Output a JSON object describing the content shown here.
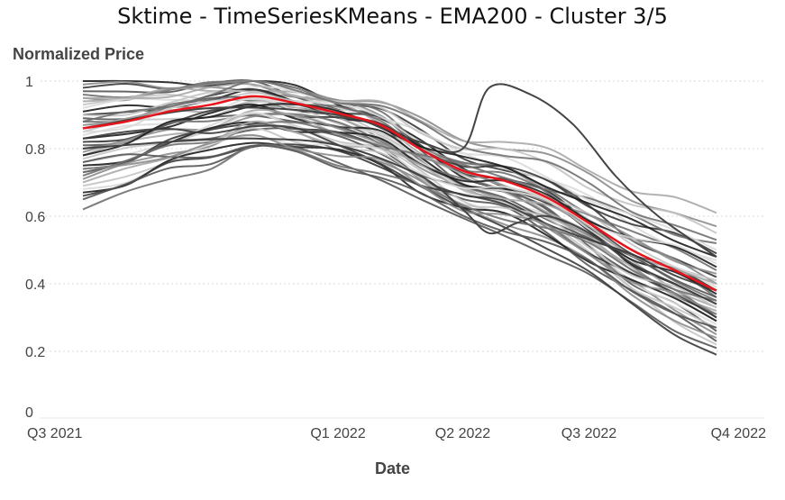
{
  "chart_data": {
    "type": "line",
    "title": "Sktime - TimeSeriesKMeans - EMA200 - Cluster 3/5",
    "xlabel": "Date",
    "ylabel": "Normalized Price",
    "x_range": [
      "2021-07-01",
      "2022-10-01"
    ],
    "ylim": [
      0,
      1
    ],
    "x_ticks": [
      {
        "date": "2021-07-01",
        "label": "Q3 2021"
      },
      {
        "date": "2022-01-01",
        "label": "Q1 2022"
      },
      {
        "date": "2022-04-01",
        "label": "Q2 2022"
      },
      {
        "date": "2022-07-01",
        "label": "Q3 2022"
      },
      {
        "date": "2022-10-01",
        "label": "Q4 2022"
      }
    ],
    "y_ticks": [
      {
        "value": 0,
        "label": "0"
      },
      {
        "value": 0.2,
        "label": "0.2"
      },
      {
        "value": 0.4,
        "label": "0.4"
      },
      {
        "value": 0.6,
        "label": "0.6"
      },
      {
        "value": 0.8,
        "label": "0.8"
      },
      {
        "value": 1,
        "label": "1"
      }
    ],
    "grid": {
      "horizontal": true,
      "vertical": false
    },
    "highlight_color": "#e8141c",
    "member_line_colors": [
      "#1e1e1e",
      "#3a3a3a",
      "#555555",
      "#707070",
      "#8c8c8c",
      "#a8a8a8",
      "#c4c4c4",
      "#dadada"
    ],
    "centroid": {
      "x": [
        "2021-07-01",
        "2021-08-01",
        "2021-09-01",
        "2021-10-01",
        "2021-11-01",
        "2021-12-01",
        "2022-01-01",
        "2022-02-01",
        "2022-03-01",
        "2022-04-01",
        "2022-05-01",
        "2022-06-01",
        "2022-07-01",
        "2022-08-01",
        "2022-09-01",
        "2022-10-01"
      ],
      "y": [
        0.86,
        0.88,
        0.91,
        0.93,
        0.955,
        0.935,
        0.905,
        0.87,
        0.8,
        0.735,
        0.705,
        0.655,
        0.58,
        0.5,
        0.44,
        0.38
      ]
    },
    "members": [
      {
        "start": 1.0,
        "peak": 1.0,
        "end": 0.31
      },
      {
        "start": 0.98,
        "peak": 1.0,
        "end": 0.42
      },
      {
        "start": 0.97,
        "peak": 0.99,
        "end": 0.26
      },
      {
        "start": 0.96,
        "peak": 0.99,
        "end": 0.36
      },
      {
        "start": 0.95,
        "peak": 0.98,
        "end": 0.4
      },
      {
        "start": 0.94,
        "peak": 0.985,
        "end": 0.29
      },
      {
        "start": 0.93,
        "peak": 0.97,
        "end": 0.22
      },
      {
        "start": 0.92,
        "peak": 0.975,
        "end": 0.47
      },
      {
        "start": 0.91,
        "peak": 0.96,
        "end": 0.34
      },
      {
        "start": 0.9,
        "peak": 0.965,
        "end": 0.38
      },
      {
        "start": 0.89,
        "peak": 0.95,
        "end": 0.3
      },
      {
        "start": 0.88,
        "peak": 0.955,
        "end": 0.44
      },
      {
        "start": 0.87,
        "peak": 0.94,
        "end": 0.25
      },
      {
        "start": 0.86,
        "peak": 0.945,
        "end": 0.33
      },
      {
        "start": 0.85,
        "peak": 0.93,
        "end": 0.41
      },
      {
        "start": 0.84,
        "peak": 0.935,
        "end": 0.28
      },
      {
        "start": 0.83,
        "peak": 0.92,
        "end": 0.37
      },
      {
        "start": 0.82,
        "peak": 0.925,
        "end": 0.49
      },
      {
        "start": 0.81,
        "peak": 0.91,
        "end": 0.23
      },
      {
        "start": 0.8,
        "peak": 0.915,
        "end": 0.35
      },
      {
        "start": 0.79,
        "peak": 0.9,
        "end": 0.43
      },
      {
        "start": 0.78,
        "peak": 0.905,
        "end": 0.32
      },
      {
        "start": 0.77,
        "peak": 0.89,
        "end": 0.27
      },
      {
        "start": 0.76,
        "peak": 0.895,
        "end": 0.39
      },
      {
        "start": 0.75,
        "peak": 0.88,
        "end": 0.45
      },
      {
        "start": 0.74,
        "peak": 0.885,
        "end": 0.3
      },
      {
        "start": 0.73,
        "peak": 0.87,
        "end": 0.36
      },
      {
        "start": 0.72,
        "peak": 0.875,
        "end": 0.52
      },
      {
        "start": 0.71,
        "peak": 0.86,
        "end": 0.24
      },
      {
        "start": 0.7,
        "peak": 0.865,
        "end": 0.4
      },
      {
        "start": 0.69,
        "peak": 0.85,
        "end": 0.33
      },
      {
        "start": 0.68,
        "peak": 0.84,
        "end": 0.46
      },
      {
        "start": 0.67,
        "peak": 0.83,
        "end": 0.29
      },
      {
        "start": 0.66,
        "peak": 0.82,
        "end": 0.38
      },
      {
        "start": 0.65,
        "peak": 0.81,
        "end": 0.21
      },
      {
        "start": 0.62,
        "peak": 0.8,
        "end": 0.35
      },
      {
        "start": 0.99,
        "peak": 0.995,
        "end": 0.57
      },
      {
        "start": 0.95,
        "peak": 0.98,
        "end": 0.61
      },
      {
        "start": 0.9,
        "peak": 0.97,
        "end": 0.55
      },
      {
        "start": 0.85,
        "peak": 0.96,
        "end": 0.5
      },
      {
        "start": 0.78,
        "peak": 0.94,
        "end": 0.48
      },
      {
        "start": 0.83,
        "peak": 0.87,
        "end": 0.19
      },
      {
        "start": 0.76,
        "peak": 0.8,
        "end": 0.27
      },
      {
        "start": 0.88,
        "peak": 0.99,
        "end": 0.53
      },
      {
        "start": 0.74,
        "peak": 0.83,
        "end": 0.31
      }
    ],
    "spike_member": {
      "x": [
        "2021-07-01",
        "2021-09-01",
        "2021-11-01",
        "2022-01-01",
        "2022-03-01",
        "2022-04-01",
        "2022-04-20",
        "2022-05-10",
        "2022-06-01",
        "2022-07-01",
        "2022-08-01",
        "2022-09-01",
        "2022-10-01"
      ],
      "y": [
        0.8,
        0.82,
        0.83,
        0.81,
        0.72,
        0.62,
        0.55,
        0.58,
        0.6,
        0.55,
        0.46,
        0.4,
        0.34
      ]
    },
    "high_spike_member": {
      "x": [
        "2021-07-01",
        "2021-10-01",
        "2022-01-01",
        "2022-03-01",
        "2022-04-01",
        "2022-04-20",
        "2022-05-20",
        "2022-06-20",
        "2022-07-20",
        "2022-08-20",
        "2022-10-01"
      ],
      "y": [
        0.86,
        0.92,
        0.9,
        0.82,
        0.8,
        0.98,
        0.96,
        0.87,
        0.72,
        0.6,
        0.48
      ]
    }
  }
}
